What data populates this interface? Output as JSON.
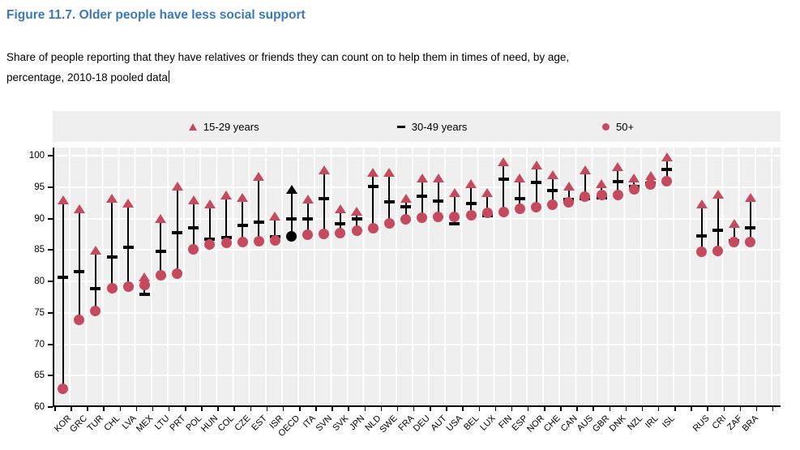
{
  "figure": {
    "title": "Figure 11.7. Older people have less social support",
    "subtitle_line1": "Share of people reporting that they have relatives or friends they can count on to help them in times of need, by age,",
    "subtitle_line2": "percentage, 2010-18 pooled data"
  },
  "legend": {
    "items": [
      {
        "label": "15-29 years",
        "marker": "triangle"
      },
      {
        "label": "30-49 years",
        "marker": "dash"
      },
      {
        "label": "50+",
        "marker": "circle"
      }
    ]
  },
  "colors": {
    "accent_rose": "#c64a5e",
    "marker_black": "#000000",
    "title_blue": "#3c78bd",
    "plot_bg": "#efefef",
    "gridline": "#ffffff"
  },
  "chart_data": {
    "type": "scatter",
    "title": "Figure 11.7. Older people have less social support",
    "ylabel": "percentage",
    "ylim": [
      60,
      100
    ],
    "y_ticks": [
      60,
      65,
      70,
      75,
      80,
      85,
      90,
      95,
      100
    ],
    "grid": true,
    "legend_position": "top",
    "highlight_category": "OECD",
    "group_break_after": "ISL",
    "categories": [
      "KOR",
      "GRC",
      "TUR",
      "CHL",
      "LVA",
      "MEX",
      "LTU",
      "PRT",
      "POL",
      "HUN",
      "COL",
      "CZE",
      "EST",
      "ISR",
      "OECD",
      "ITA",
      "SVN",
      "SVK",
      "JPN",
      "NLD",
      "SWE",
      "FRA",
      "DEU",
      "AUT",
      "USA",
      "BEL",
      "LUX",
      "FIN",
      "ESP",
      "NOR",
      "CHE",
      "CAN",
      "AUS",
      "GBR",
      "DNK",
      "NZL",
      "IRL",
      "ISL",
      "RUS",
      "CRI",
      "ZAF",
      "BRA"
    ],
    "series": [
      {
        "name": "15-29 years",
        "marker": "triangle",
        "values": [
          93.0,
          91.6,
          85.0,
          93.2,
          92.4,
          80.7,
          90.0,
          95.2,
          93.0,
          92.3,
          93.7,
          93.4,
          96.7,
          90.4,
          94.6,
          93.1,
          97.7,
          91.5,
          91.2,
          97.3,
          97.4,
          93.2,
          96.5,
          96.5,
          94.2,
          95.5,
          94.1,
          99.0,
          96.4,
          98.5,
          97.0,
          95.2,
          97.8,
          95.6,
          98.3,
          96.5,
          96.9,
          99.8,
          92.3,
          93.9,
          89.2,
          93.4
        ]
      },
      {
        "name": "30-49 years",
        "marker": "dash",
        "values": [
          80.6,
          81.6,
          78.8,
          83.9,
          85.4,
          77.9,
          84.8,
          87.7,
          88.5,
          86.7,
          87.0,
          88.9,
          89.4,
          87.1,
          90.0,
          90.0,
          93.2,
          89.2,
          90.0,
          95.1,
          92.7,
          91.9,
          93.6,
          92.8,
          89.2,
          92.4,
          90.4,
          96.3,
          93.2,
          95.7,
          94.5,
          93.1,
          93.2,
          93.3,
          95.9,
          95.1,
          95.6,
          97.8,
          87.2,
          88.2,
          86.5,
          88.5
        ]
      },
      {
        "name": "50+",
        "marker": "circle",
        "values": [
          62.9,
          73.9,
          75.3,
          78.9,
          79.2,
          79.4,
          81.0,
          81.2,
          85.1,
          85.9,
          86.1,
          86.3,
          86.4,
          86.5,
          87.2,
          87.4,
          87.5,
          87.7,
          88.1,
          88.4,
          89.2,
          89.9,
          90.1,
          90.3,
          90.3,
          90.5,
          90.9,
          91.1,
          91.5,
          91.8,
          92.2,
          92.6,
          93.5,
          93.7,
          93.8,
          94.7,
          95.4,
          96.0,
          84.7,
          84.9,
          86.3,
          86.3
        ]
      }
    ]
  }
}
